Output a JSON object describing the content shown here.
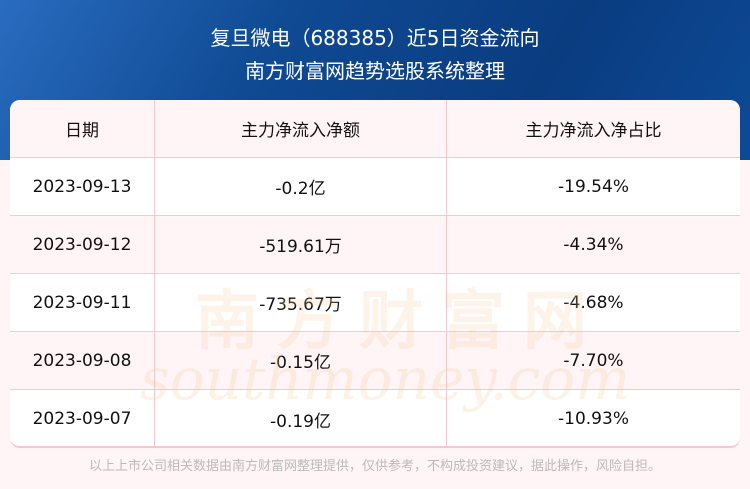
{
  "title": "复旦微电（688385）近5日资金流向",
  "subtitle": "南方财富网趋势选股系统整理",
  "table": {
    "headers": [
      "日期",
      "主力净流入净额",
      "主力净流入净占比"
    ],
    "rows": [
      [
        "2023-09-13",
        "-0.2亿",
        "-19.54%"
      ],
      [
        "2023-09-12",
        "-519.61万",
        "-4.34%"
      ],
      [
        "2023-09-11",
        "-735.67万",
        "-4.68%"
      ],
      [
        "2023-09-08",
        "-0.15亿",
        "-7.70%"
      ],
      [
        "2023-09-07",
        "-0.19亿",
        "-10.93%"
      ]
    ]
  },
  "watermark": {
    "cn": "南方财富网",
    "en": "southmoney.com"
  },
  "footer": "以上上市公司相关数据由南方财富网整理提供，仅供参考，不构成投资建议，据此操作，风险自担。"
}
